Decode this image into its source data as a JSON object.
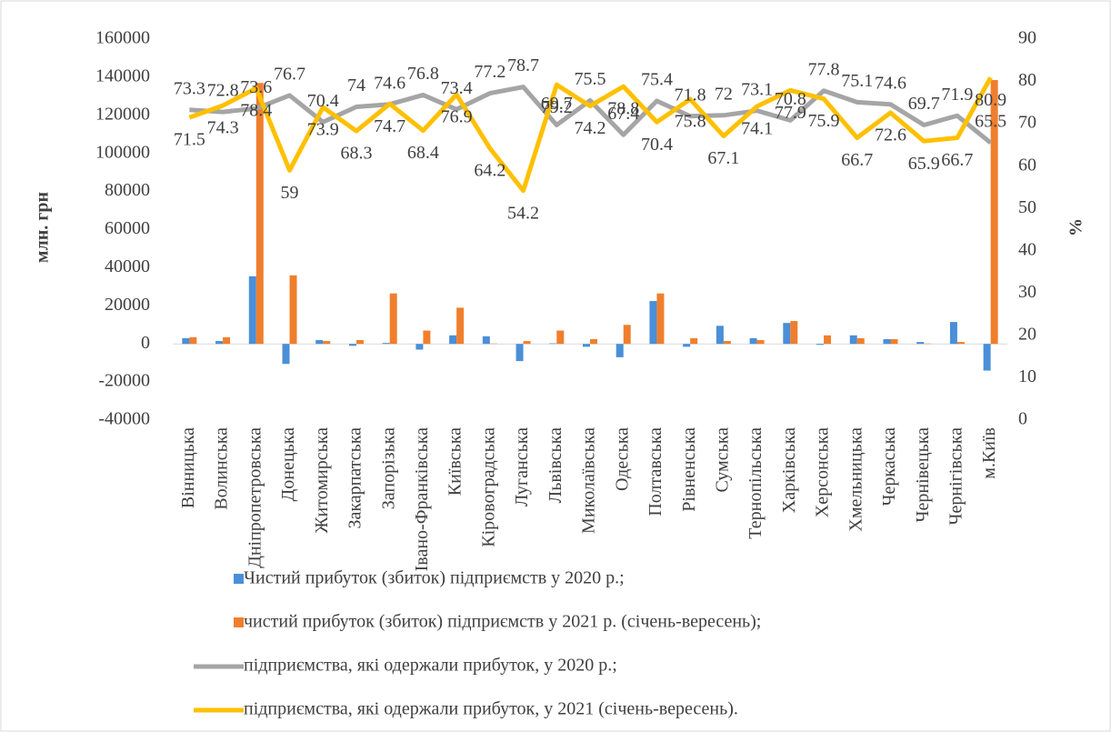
{
  "chart_data": {
    "type": "bar_line",
    "y_axis_label": "млн. грн",
    "y2_axis_label": "%",
    "categories": [
      "Вінницька",
      "Волинська",
      "Дніпропетровська",
      "Донецька",
      "Житомирська",
      "Закарпатська",
      "Запорізька",
      "Івано-Франківська",
      "Київська",
      "Кіровоградська",
      "Луганська",
      "Львівська",
      "Миколаївська",
      "Одеська",
      "Полтавська",
      "Рівненська",
      "Сумська",
      "Тернопільська",
      "Харківська",
      "Херсонська",
      "Хмельницька",
      "Черкаська",
      "Чернівецька",
      "Чернігівська",
      "м.Київ"
    ],
    "ylim": [
      -40000,
      160000
    ],
    "yticks": [
      -40000,
      -20000,
      0,
      20000,
      40000,
      60000,
      80000,
      100000,
      120000,
      140000,
      160000
    ],
    "y2lim": [
      0,
      90
    ],
    "y2ticks": [
      0,
      10,
      20,
      30,
      40,
      50,
      60,
      70,
      80,
      90
    ],
    "series": [
      {
        "name": "Чистий прибуток (збиток) підприємств у 2020 р.;",
        "type": "bar",
        "color": "#4a8fd8",
        "values": [
          3000,
          1500,
          35500,
          -10500,
          2000,
          -1000,
          500,
          -3000,
          4500,
          4000,
          -9000,
          300,
          -1500,
          -7000,
          22500,
          -1500,
          9500,
          3000,
          11000,
          -500,
          4500,
          2500,
          1000,
          11500,
          -14000
        ]
      },
      {
        "name": "чистий прибуток (збиток) підприємств у 2021 р.  (січень-вересень);",
        "type": "bar",
        "color": "#f07f2d",
        "values": [
          3500,
          3500,
          137000,
          36000,
          1500,
          2000,
          26500,
          7000,
          19000,
          200,
          1500,
          7000,
          2500,
          10000,
          26500,
          3000,
          1500,
          2000,
          12000,
          4500,
          3000,
          2500,
          200,
          1000,
          138500
        ]
      },
      {
        "name": "підприємства, які одержали прибуток, у 2020 р.;",
        "type": "line",
        "axis": "y2",
        "color": "#a5a5a5",
        "values": [
          73.3,
          72.8,
          73.6,
          76.7,
          70.4,
          74,
          74.6,
          76.8,
          73.4,
          77.2,
          78.7,
          69.7,
          75.5,
          67.4,
          75.4,
          71.8,
          72,
          73.1,
          70.8,
          77.8,
          75.1,
          74.6,
          69.7,
          71.9,
          65.5
        ]
      },
      {
        "name": "підприємства, які одержали прибуток, у 2021 (січень-вересень).",
        "type": "line",
        "axis": "y2",
        "color": "#ffc000",
        "values": [
          71.5,
          74.3,
          78.4,
          59,
          73.9,
          68.3,
          74.7,
          68.4,
          76.9,
          64.2,
          54.2,
          79.2,
          74.2,
          78.8,
          70.4,
          75.8,
          67.1,
          74.1,
          77.9,
          75.9,
          66.7,
          72.6,
          65.9,
          66.7,
          80.9
        ]
      }
    ]
  }
}
